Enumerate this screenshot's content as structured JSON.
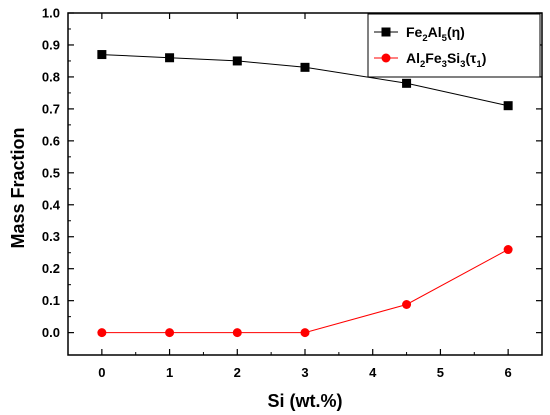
{
  "chart_data": {
    "type": "line",
    "xlabel": "Si (wt.%)",
    "ylabel": "Mass Fraction",
    "xlim": [
      -0.5,
      6.5
    ],
    "ylim": [
      -0.07,
      1.0
    ],
    "x_ticks": [
      0,
      1,
      2,
      3,
      4,
      5,
      6
    ],
    "y_ticks": [
      0.0,
      0.1,
      0.2,
      0.3,
      0.4,
      0.5,
      0.6,
      0.7,
      0.8,
      0.9,
      1.0
    ],
    "x_tick_labels": [
      "0",
      "1",
      "2",
      "3",
      "4",
      "5",
      "6"
    ],
    "y_tick_labels": [
      "0.0",
      "0.1",
      "0.2",
      "0.3",
      "0.4",
      "0.5",
      "0.6",
      "0.7",
      "0.8",
      "0.9",
      "1.0"
    ],
    "legend_position": "top-right",
    "series": [
      {
        "legend": {
          "parts": [
            "Fe",
            "2",
            "Al",
            "5",
            "(η)"
          ]
        },
        "color": "#000000",
        "marker": "square",
        "x": [
          0,
          1,
          2,
          3,
          4.5,
          6
        ],
        "y": [
          0.87,
          0.86,
          0.85,
          0.83,
          0.78,
          0.71
        ]
      },
      {
        "legend": {
          "parts": [
            "Al",
            "2",
            "Fe",
            "3",
            "Si",
            "3",
            "(τ",
            "1",
            ")"
          ]
        },
        "color": "#ff0000",
        "marker": "circle",
        "x": [
          0,
          1,
          2,
          3,
          4.5,
          6
        ],
        "y": [
          0.0,
          0.0,
          0.0,
          0.0,
          0.088,
          0.26
        ]
      }
    ]
  }
}
